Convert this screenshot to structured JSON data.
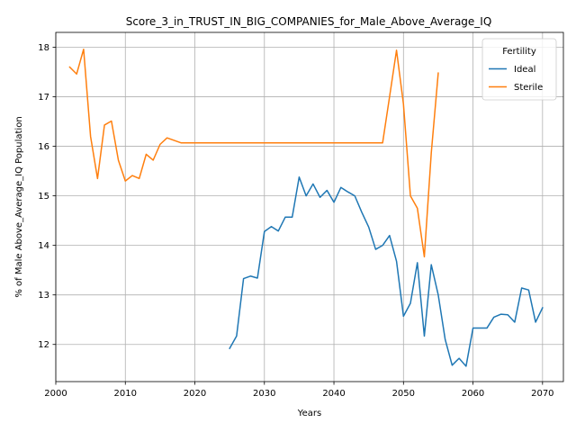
{
  "chart_data": {
    "type": "line",
    "title": "Score_3_in_TRUST_IN_BIG_COMPANIES_for_Male_Above_Average_IQ",
    "xlabel": "Years",
    "ylabel": "% of Male Above_Average_IQ Population",
    "xlim": [
      2000,
      2073
    ],
    "ylim": [
      11.25,
      18.3
    ],
    "x_ticks": [
      2000,
      2010,
      2020,
      2030,
      2040,
      2050,
      2060,
      2070
    ],
    "x_tick_labels": [
      "2000",
      "2010",
      "2020",
      "2030",
      "2040",
      "2050",
      "2060",
      "2070"
    ],
    "y_ticks": [
      12,
      13,
      14,
      15,
      16,
      17,
      18
    ],
    "y_tick_labels": [
      "12",
      "13",
      "14",
      "15",
      "16",
      "17",
      "18"
    ],
    "grid": true,
    "legend": {
      "title": "Fertility",
      "placement": "top-right"
    },
    "series": [
      {
        "name": "Ideal",
        "color": "#1f77b4",
        "x": [
          2025,
          2026,
          2027,
          2028,
          2029,
          2030,
          2031,
          2032,
          2033,
          2034,
          2035,
          2036,
          2037,
          2038,
          2039,
          2040,
          2041,
          2042,
          2043,
          2044,
          2045,
          2046,
          2047,
          2048,
          2049,
          2050,
          2051,
          2052,
          2053,
          2054,
          2055,
          2056,
          2057,
          2058,
          2059,
          2060,
          2061,
          2062,
          2063,
          2064,
          2065,
          2066,
          2067,
          2068,
          2069,
          2070
        ],
        "values": [
          11.92,
          12.17,
          13.33,
          13.38,
          13.34,
          14.28,
          14.38,
          14.29,
          14.57,
          14.57,
          15.38,
          15.0,
          15.24,
          14.97,
          15.11,
          14.87,
          15.17,
          15.08,
          15.0,
          14.67,
          14.37,
          13.92,
          14.0,
          14.2,
          13.68,
          12.57,
          12.83,
          13.65,
          12.17,
          13.61,
          13.0,
          12.1,
          11.58,
          11.72,
          11.56,
          12.33,
          12.33,
          12.33,
          12.55,
          12.61,
          12.6,
          12.45,
          13.14,
          13.1,
          12.45,
          12.74
        ]
      },
      {
        "name": "Sterile",
        "color": "#ff7f0e",
        "x": [
          2002,
          2003,
          2004,
          2005,
          2006,
          2007,
          2008,
          2009,
          2010,
          2011,
          2012,
          2013,
          2014,
          2015,
          2016,
          2017,
          2018,
          2019,
          2020,
          2021,
          2022,
          2023,
          2024,
          2025,
          2026,
          2027,
          2028,
          2029,
          2030,
          2031,
          2032,
          2033,
          2034,
          2035,
          2036,
          2037,
          2038,
          2039,
          2040,
          2041,
          2042,
          2043,
          2044,
          2045,
          2046,
          2047,
          2048,
          2049,
          2050,
          2051,
          2052,
          2053,
          2054,
          2055
        ],
        "values": [
          17.6,
          17.46,
          17.96,
          16.2,
          15.35,
          16.43,
          16.51,
          15.72,
          15.3,
          15.41,
          15.35,
          15.84,
          15.72,
          16.04,
          16.17,
          16.12,
          16.07,
          16.07,
          16.07,
          16.07,
          16.07,
          16.07,
          16.07,
          16.07,
          16.07,
          16.07,
          16.07,
          16.07,
          16.07,
          16.07,
          16.07,
          16.07,
          16.07,
          16.07,
          16.07,
          16.07,
          16.07,
          16.07,
          16.07,
          16.07,
          16.07,
          16.07,
          16.07,
          16.07,
          16.07,
          16.07,
          17.0,
          17.94,
          16.85,
          15.0,
          14.75,
          13.77,
          15.87,
          17.48
        ]
      }
    ]
  }
}
